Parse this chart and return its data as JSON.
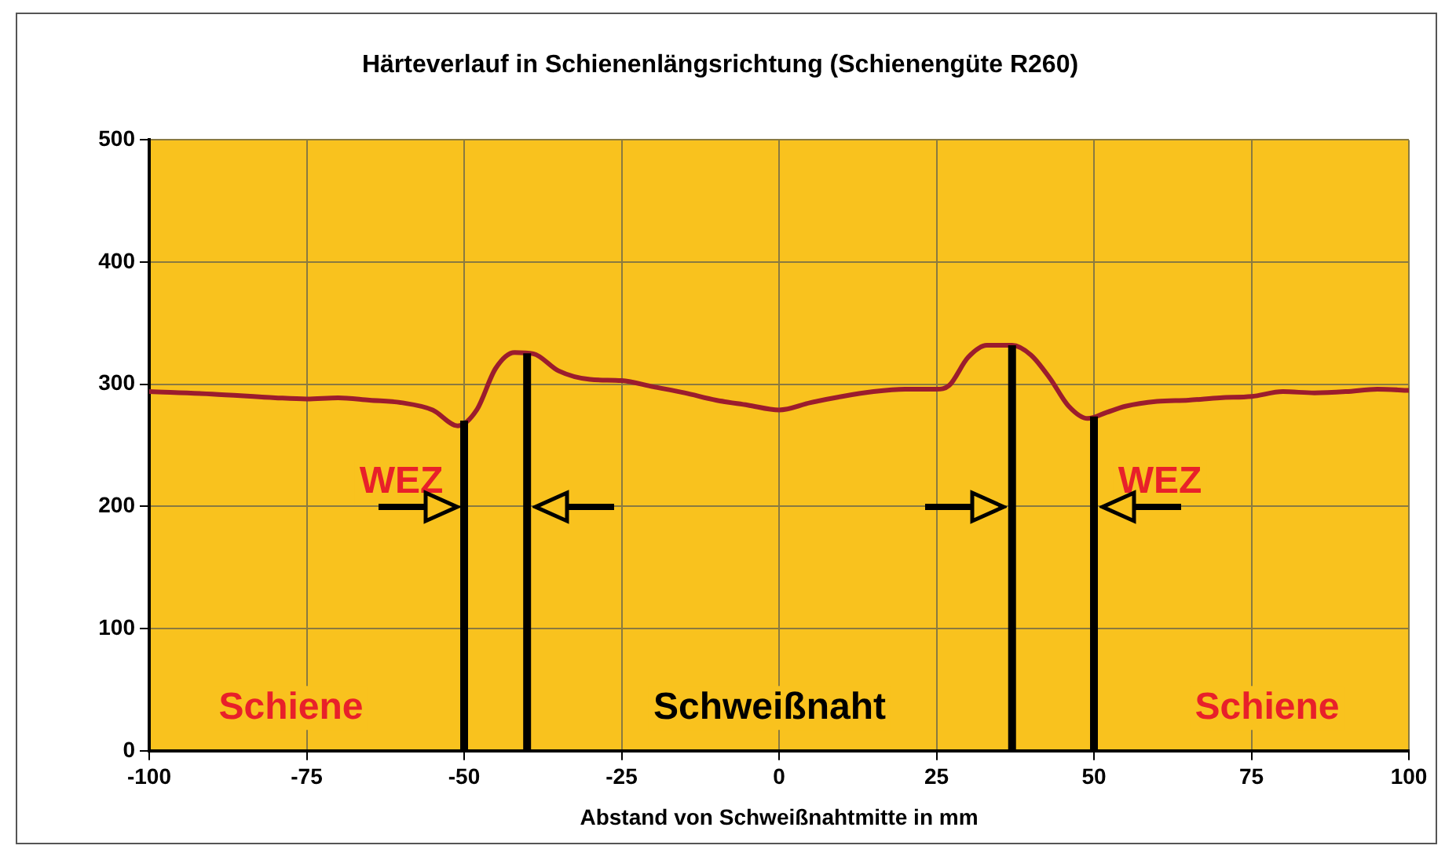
{
  "chart_data": {
    "type": "line",
    "title": "Härteverlauf in Schienenlängsrichtung (Schienengüte R260)",
    "xlabel": "Abstand von Schweißnahtmitte in mm",
    "series": [
      {
        "color": "#9b1c2e",
        "x": [
          -100,
          -90,
          -80,
          -75,
          -70,
          -65,
          -60,
          -55,
          -51,
          -48,
          -45,
          -42,
          -39,
          -35,
          -30,
          -25,
          -20,
          -15,
          -10,
          -5,
          0,
          5,
          10,
          15,
          20,
          25,
          27,
          30,
          33,
          37,
          40,
          43,
          46,
          49,
          52,
          55,
          60,
          65,
          70,
          75,
          80,
          85,
          90,
          95,
          100
        ],
        "values": [
          294,
          292,
          289,
          288,
          289,
          287,
          285,
          279,
          266,
          279,
          313,
          326,
          325,
          311,
          304,
          303,
          298,
          293,
          287,
          283,
          279,
          285,
          290,
          294,
          296,
          296,
          299,
          322,
          332,
          332,
          324,
          305,
          282,
          272,
          277,
          282,
          286,
          287,
          289,
          290,
          294,
          293,
          294,
          296,
          295
        ]
      }
    ],
    "xlim": [
      -100,
      100
    ],
    "xticks": [
      -100,
      -75,
      -50,
      -25,
      0,
      25,
      50,
      75,
      100
    ],
    "ylim": [
      0,
      500
    ],
    "yticks": [
      0,
      100,
      200,
      300,
      400,
      500
    ],
    "grid": true,
    "marker": "none",
    "line_style": "solid",
    "ref_lines": [
      {
        "axis": "x",
        "value": -50,
        "color": "#000000"
      },
      {
        "axis": "x",
        "value": -40,
        "color": "#000000"
      },
      {
        "axis": "x",
        "value": 37,
        "color": "#000000"
      },
      {
        "axis": "x",
        "value": 50,
        "color": "#000000"
      }
    ],
    "annotations": [
      "WEZ",
      "WEZ",
      "Schiene",
      "Schweißnaht",
      "Schiene"
    ]
  }
}
